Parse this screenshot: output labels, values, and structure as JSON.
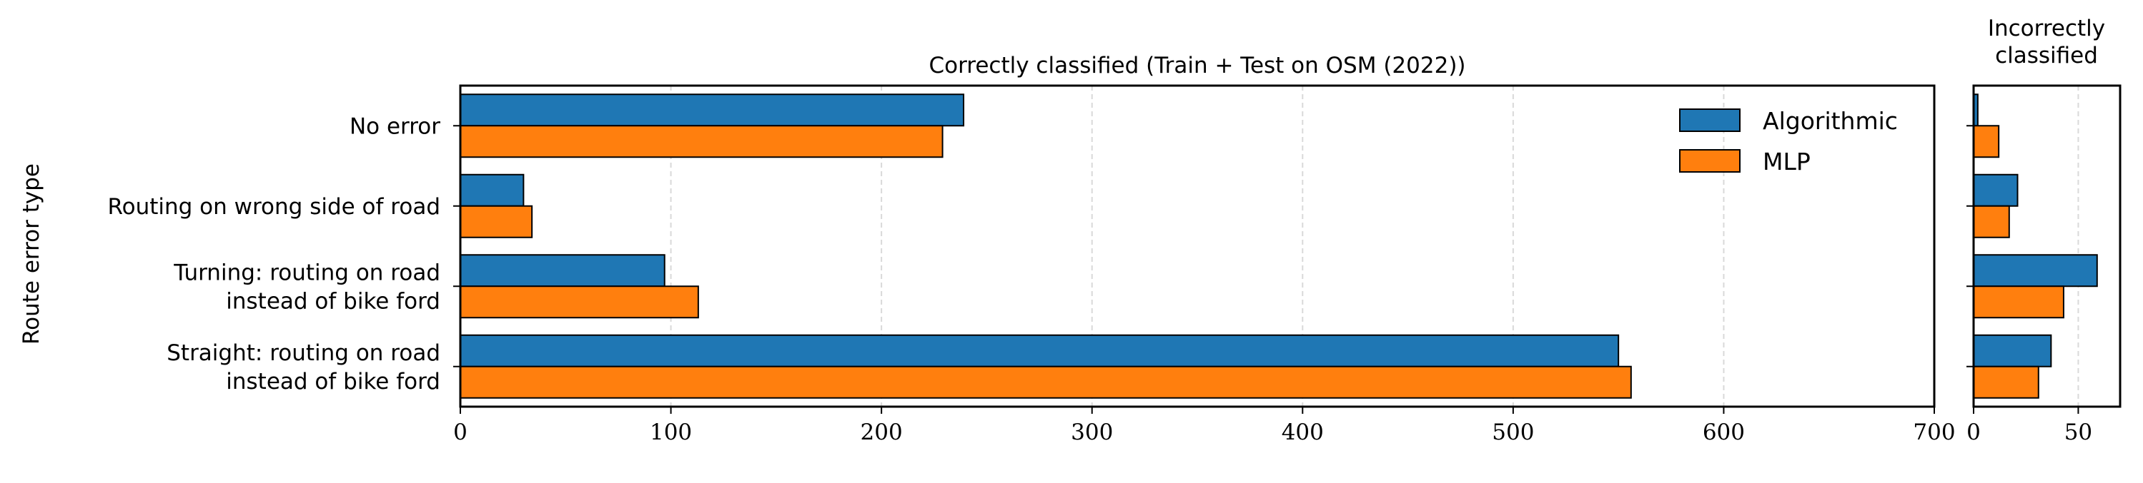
{
  "ylabel": "Route error type",
  "chart_data": [
    {
      "type": "bar",
      "orientation": "horizontal",
      "title": "Correctly classified (Train + Test on OSM (2022))",
      "xlabel": "",
      "ylabel": "Route error type",
      "categories": [
        "No error",
        "Routing on wrong side of road",
        "Turning: routing on road\ninstead of bike ford",
        "Straight: routing on road\ninstead of bike ford"
      ],
      "series": [
        {
          "name": "Algorithmic",
          "color": "#1f77b4",
          "values": [
            239,
            30,
            97,
            550
          ]
        },
        {
          "name": "MLP",
          "color": "#ff7f0e",
          "values": [
            229,
            34,
            113,
            556
          ]
        }
      ],
      "xlim": [
        0,
        700
      ],
      "xticks": [
        "0",
        "100",
        "200",
        "300",
        "400",
        "500",
        "600",
        "700"
      ],
      "grid": "vertical-dashed",
      "legend": "top-right"
    },
    {
      "type": "bar",
      "orientation": "horizontal",
      "title": "Incorrectly\nclassified",
      "xlabel": "",
      "categories": [
        "No error",
        "Routing on wrong side of road",
        "Turning: routing on road\ninstead of bike ford",
        "Straight: routing on road\ninstead of bike ford"
      ],
      "series": [
        {
          "name": "Algorithmic",
          "color": "#1f77b4",
          "values": [
            2,
            21,
            59,
            37
          ]
        },
        {
          "name": "MLP",
          "color": "#ff7f0e",
          "values": [
            12,
            17,
            43,
            31
          ]
        }
      ],
      "xlim": [
        0,
        70
      ],
      "xticks": [
        "0",
        "50"
      ],
      "grid": "vertical-dashed"
    }
  ]
}
